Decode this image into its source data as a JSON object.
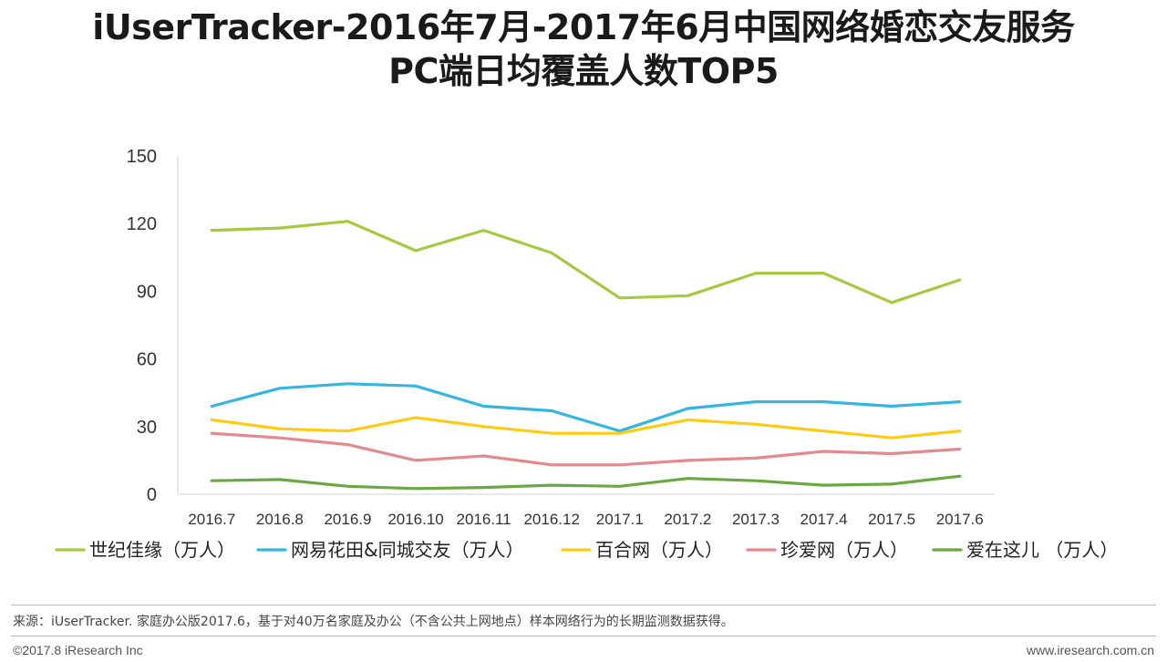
{
  "chart_data": {
    "type": "line",
    "title_line1": "iUserTracker-2016年7月-2017年6月中国网络婚恋交友服务",
    "title_line2": "PC端日均覆盖人数TOP5",
    "categories": [
      "2016.7",
      "2016.8",
      "2016.9",
      "2016.10",
      "2016.11",
      "2016.12",
      "2017.1",
      "2017.2",
      "2017.3",
      "2017.4",
      "2017.5",
      "2017.6"
    ],
    "ylim": [
      0,
      150
    ],
    "yticks": [
      0,
      30,
      60,
      90,
      120,
      150
    ],
    "grid": false,
    "legend_position": "bottom",
    "series": [
      {
        "name": "世纪佳缘（万人）",
        "color": "#a5c93f",
        "values": [
          117,
          118,
          121,
          108,
          117,
          107,
          87,
          88,
          98,
          98,
          85,
          95
        ]
      },
      {
        "name": "网易花田&同城交友（万人）",
        "color": "#35b5e0",
        "values": [
          39,
          47,
          49,
          48,
          39,
          37,
          28,
          38,
          41,
          41,
          39,
          41
        ]
      },
      {
        "name": "百合网（万人）",
        "color": "#fccb12",
        "values": [
          33,
          29,
          28,
          34,
          30,
          27,
          27,
          33,
          31,
          28,
          25,
          28
        ]
      },
      {
        "name": "珍爱网（万人）",
        "color": "#e38a8f",
        "values": [
          27,
          25,
          22,
          15,
          17,
          13,
          13,
          15,
          16,
          19,
          18,
          20
        ]
      },
      {
        "name": "爱在这儿 （万人）",
        "color": "#6aa842",
        "values": [
          6,
          6.5,
          3.5,
          2.5,
          3,
          4,
          3.5,
          7,
          6,
          4,
          4.5,
          8
        ]
      }
    ]
  },
  "footer": {
    "source": "来源：iUserTracker. 家庭办公版2017.6，基于对40万名家庭及办公（不含公共上网地点）样本网络行为的长期监测数据获得。",
    "copyright": "©2017.8 iResearch Inc",
    "website": "www.iresearch.com.cn"
  }
}
